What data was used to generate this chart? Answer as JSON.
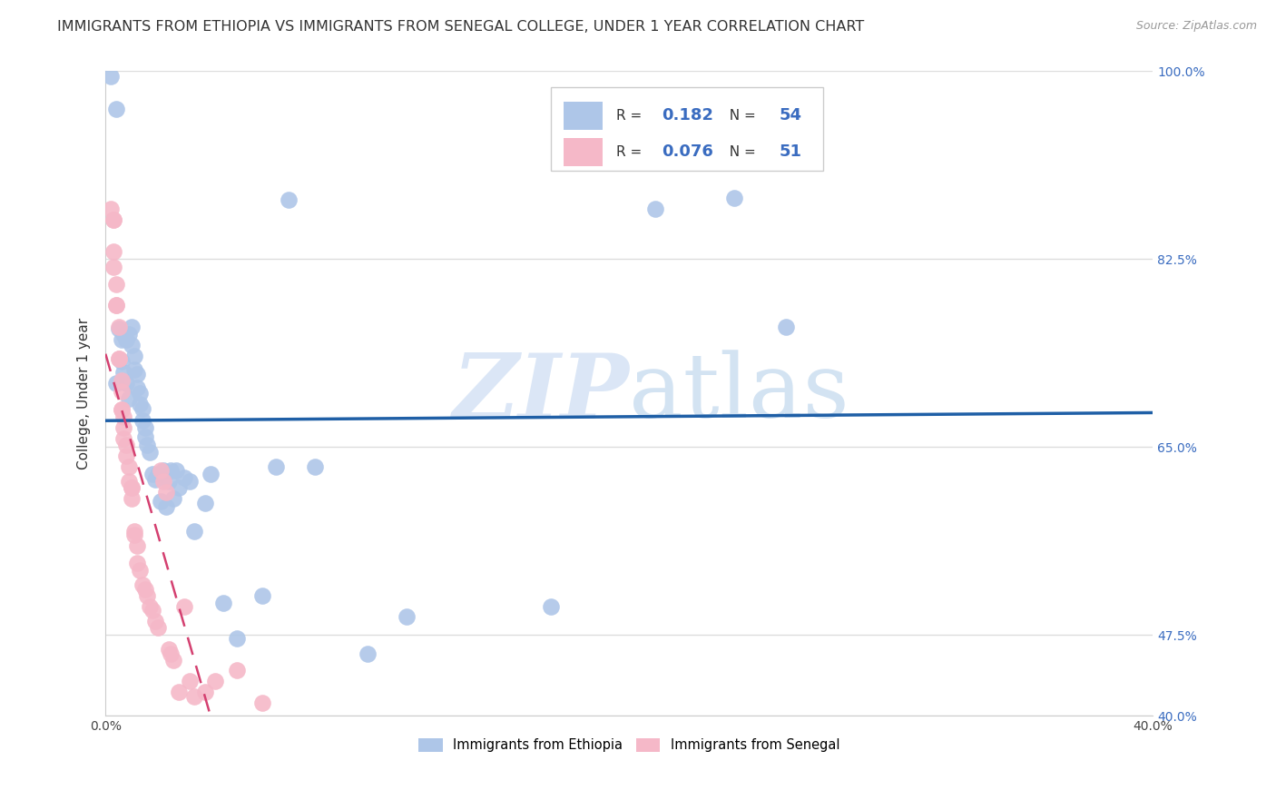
{
  "title": "IMMIGRANTS FROM ETHIOPIA VS IMMIGRANTS FROM SENEGAL COLLEGE, UNDER 1 YEAR CORRELATION CHART",
  "source": "Source: ZipAtlas.com",
  "ylabel": "College, Under 1 year",
  "watermark_zip": "ZIP",
  "watermark_atlas": "atlas",
  "xlim": [
    0.0,
    0.4
  ],
  "ylim": [
    0.4,
    1.0
  ],
  "xtick_positions": [
    0.0,
    0.08,
    0.16,
    0.24,
    0.32,
    0.4
  ],
  "xticklabels": [
    "0.0%",
    "",
    "",
    "",
    "",
    "40.0%"
  ],
  "ytick_positions": [
    0.4,
    0.475,
    0.65,
    0.825,
    1.0
  ],
  "ytick_labels": [
    "40.0%",
    "47.5%",
    "65.0%",
    "82.5%",
    "100.0%"
  ],
  "ethiopia_color": "#aec6e8",
  "senegal_color": "#f5b8c8",
  "ethiopia_line_color": "#1f5fa6",
  "senegal_line_color": "#d44070",
  "ethiopia_R": "0.182",
  "ethiopia_N": "54",
  "senegal_R": "0.076",
  "senegal_N": "51",
  "ethiopia_x": [
    0.002,
    0.004,
    0.004,
    0.005,
    0.006,
    0.006,
    0.007,
    0.007,
    0.008,
    0.008,
    0.009,
    0.009,
    0.01,
    0.01,
    0.011,
    0.011,
    0.012,
    0.012,
    0.013,
    0.013,
    0.014,
    0.014,
    0.015,
    0.015,
    0.016,
    0.017,
    0.018,
    0.019,
    0.02,
    0.021,
    0.022,
    0.023,
    0.024,
    0.025,
    0.026,
    0.027,
    0.028,
    0.03,
    0.032,
    0.034,
    0.038,
    0.04,
    0.045,
    0.05,
    0.06,
    0.065,
    0.07,
    0.08,
    0.1,
    0.115,
    0.17,
    0.21,
    0.24,
    0.26
  ],
  "ethiopia_y": [
    0.995,
    0.965,
    0.71,
    0.76,
    0.75,
    0.73,
    0.755,
    0.72,
    0.75,
    0.71,
    0.755,
    0.695,
    0.762,
    0.745,
    0.735,
    0.722,
    0.718,
    0.705,
    0.7,
    0.69,
    0.686,
    0.675,
    0.668,
    0.66,
    0.652,
    0.645,
    0.625,
    0.62,
    0.625,
    0.6,
    0.628,
    0.595,
    0.618,
    0.628,
    0.602,
    0.628,
    0.612,
    0.622,
    0.618,
    0.572,
    0.598,
    0.625,
    0.505,
    0.472,
    0.512,
    0.632,
    0.88,
    0.632,
    0.458,
    0.492,
    0.502,
    0.872,
    0.882,
    0.762
  ],
  "senegal_x": [
    0.002,
    0.003,
    0.003,
    0.003,
    0.004,
    0.004,
    0.005,
    0.005,
    0.006,
    0.006,
    0.006,
    0.007,
    0.007,
    0.007,
    0.008,
    0.008,
    0.009,
    0.009,
    0.01,
    0.01,
    0.011,
    0.011,
    0.012,
    0.012,
    0.013,
    0.014,
    0.015,
    0.016,
    0.017,
    0.018,
    0.019,
    0.02,
    0.021,
    0.022,
    0.023,
    0.024,
    0.025,
    0.026,
    0.028,
    0.03,
    0.032,
    0.034,
    0.038,
    0.042,
    0.05,
    0.06,
    0.003,
    0.005,
    0.004,
    0.006,
    0.01
  ],
  "senegal_y": [
    0.872,
    0.862,
    0.832,
    0.818,
    0.802,
    0.782,
    0.762,
    0.732,
    0.712,
    0.702,
    0.685,
    0.678,
    0.668,
    0.658,
    0.652,
    0.642,
    0.632,
    0.618,
    0.612,
    0.602,
    0.572,
    0.568,
    0.558,
    0.542,
    0.535,
    0.522,
    0.518,
    0.512,
    0.502,
    0.498,
    0.488,
    0.482,
    0.628,
    0.618,
    0.608,
    0.462,
    0.458,
    0.452,
    0.422,
    0.502,
    0.432,
    0.418,
    0.422,
    0.432,
    0.442,
    0.412,
    0.862,
    0.732,
    0.782,
    0.685,
    0.612
  ],
  "grid_color": "#dddddd",
  "background_color": "#ffffff",
  "title_fontsize": 11.5,
  "ylabel_fontsize": 11,
  "tick_fontsize": 10,
  "legend_fontsize_label": 11,
  "legend_fontsize_value": 13
}
